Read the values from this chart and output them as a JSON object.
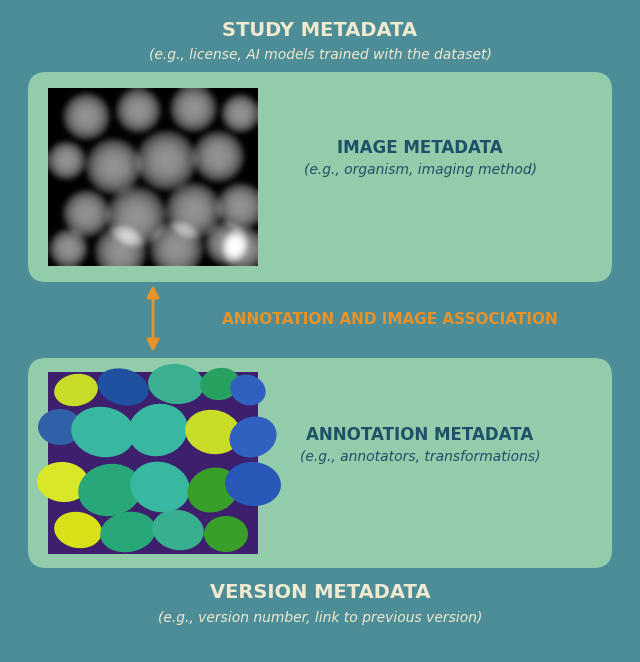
{
  "bg_color": "#4d8d98",
  "green_box_color": "#92ccaa",
  "inner_box_color": "#b8e0c0",
  "title_color": "#f0ead0",
  "label_color": "#1e5068",
  "arrow_color": "#e8922a",
  "study_title": "STUDY METADATA",
  "study_subtitle": "(e.g., license, AI models trained with the dataset)",
  "image_title": "IMAGE METADATA",
  "image_subtitle": "(e.g., organism, imaging method)",
  "annotation_title": "ANNOTATION METADATA",
  "annotation_subtitle": "(e.g., annotators, transformations)",
  "version_title": "VERSION METADATA",
  "version_subtitle": "(e.g., version number, link to previous version)",
  "assoc_label": "ANNOTATION AND IMAGE ASSOCIATION",
  "fig_width": 6.4,
  "fig_height": 6.62,
  "dpi": 100
}
